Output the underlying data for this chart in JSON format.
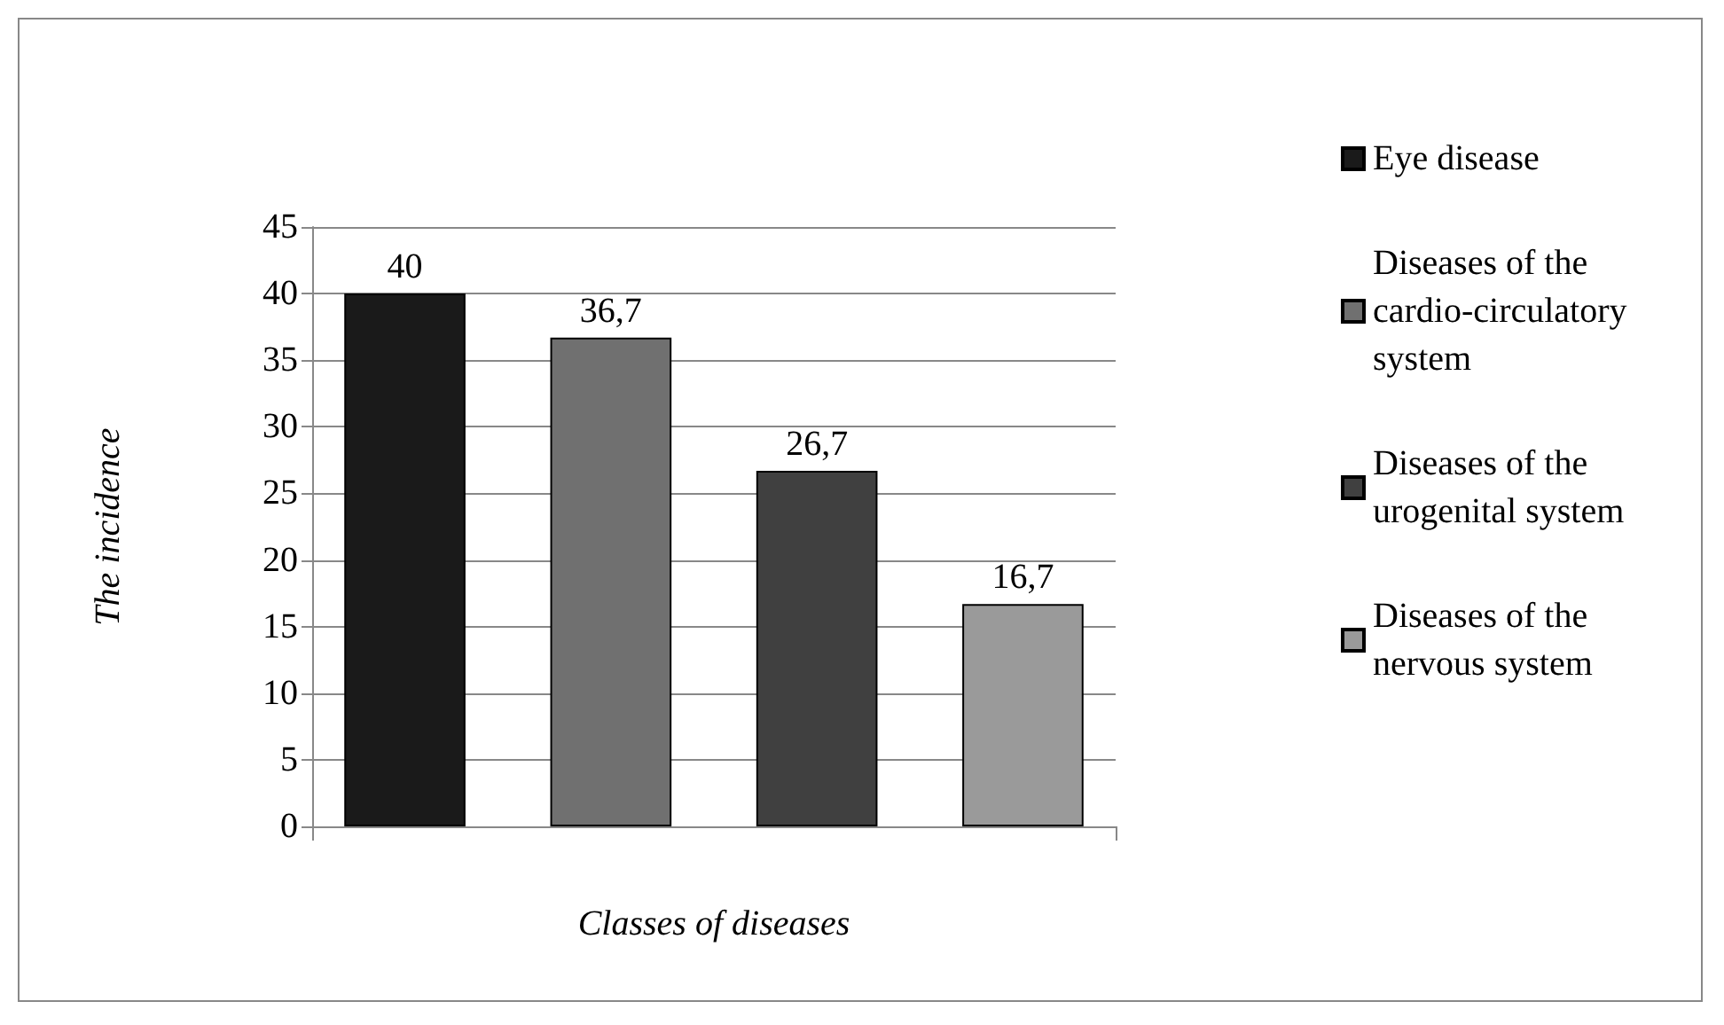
{
  "chart_data": {
    "type": "bar",
    "xlabel": "Classes of diseases",
    "ylabel": "The incidence",
    "categories": [
      null
    ],
    "series": [
      {
        "name": "Eye disease",
        "color": "#1a1a1a",
        "values": [
          40
        ],
        "value_labels": [
          "40"
        ]
      },
      {
        "name": "Diseases of the cardio-circulatory system",
        "color": "#707070",
        "values": [
          36.7
        ],
        "value_labels": [
          "36,7"
        ]
      },
      {
        "name": "Diseases of the urogenital system",
        "color": "#404040",
        "values": [
          26.7
        ],
        "value_labels": [
          "26,7"
        ]
      },
      {
        "name": "Diseases of the nervous system",
        "color": "#9a9a9a",
        "values": [
          16.7
        ],
        "value_labels": [
          "16,7"
        ]
      }
    ],
    "ylim": [
      0,
      45
    ],
    "yticks": [
      0,
      5,
      10,
      15,
      20,
      25,
      30,
      35,
      40,
      45
    ],
    "grid": "y",
    "legend": "right"
  }
}
